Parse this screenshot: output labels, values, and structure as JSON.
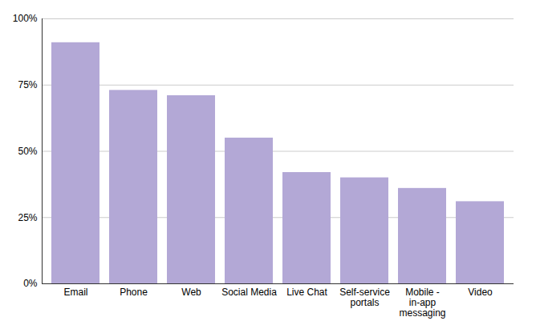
{
  "chart_data": {
    "type": "bar",
    "categories": [
      "Email",
      "Phone",
      "Web",
      "Social Media",
      "Live Chat",
      "Self-service portals",
      "Mobile - in-app messaging",
      "Video"
    ],
    "values": [
      91,
      73,
      71,
      55,
      42,
      40,
      36,
      31
    ],
    "color": "#b3a8d6",
    "ylim": [
      0,
      100
    ],
    "yticks": [
      {
        "value": 0,
        "label": "0%"
      },
      {
        "value": 25,
        "label": "25%"
      },
      {
        "value": 50,
        "label": "50%"
      },
      {
        "value": 75,
        "label": "75%"
      },
      {
        "value": 100,
        "label": "100%"
      }
    ],
    "grid": true
  }
}
